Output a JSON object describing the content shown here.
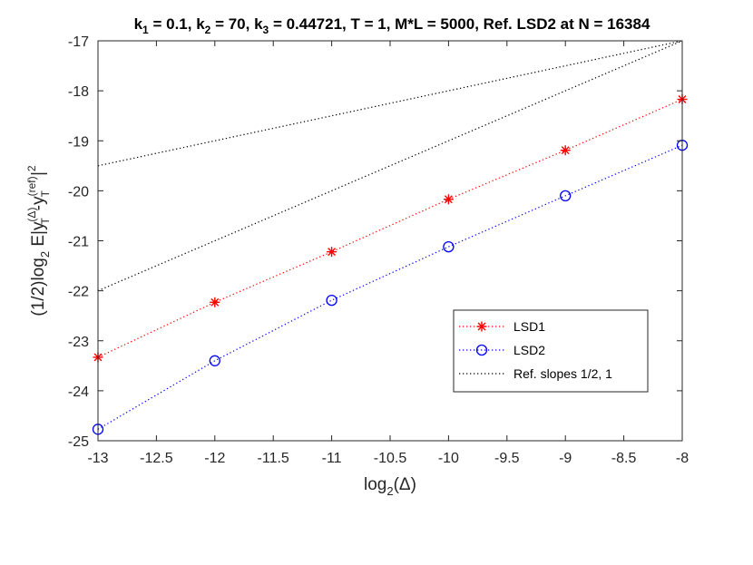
{
  "chart_data": {
    "type": "line",
    "title": {
      "parts": [
        {
          "t": "k"
        },
        {
          "t": "1",
          "sub": true
        },
        {
          "t": " = "
        },
        {
          "t": "0.1, k"
        },
        {
          "t": "2",
          "sub": true
        },
        {
          "t": " = "
        },
        {
          "t": "70, k"
        },
        {
          "t": "3",
          "sub": true
        },
        {
          "t": " = "
        },
        {
          "t": "0.44721, T = 1, M*L  = 5000, Ref. LSD2 at N = 16384"
        }
      ]
    },
    "xlabel": {
      "main": "log",
      "sub": "2",
      "rest": "(Δ)"
    },
    "ylabel": {
      "p1": "(1/2)log",
      "p1sub": "2",
      "p2": " E|y",
      "sup1": "(Δ)",
      "sub1": "T",
      "p3": "-y",
      "sup2": "(ref)",
      "sub2": "T",
      "p4": "|",
      "sup3": "2"
    },
    "xlim": [
      -13,
      -8
    ],
    "ylim": [
      -25,
      -17
    ],
    "xticks": [
      -13,
      -12.5,
      -12,
      -11.5,
      -11,
      -10.5,
      -10,
      -9.5,
      -9,
      -8.5,
      -8
    ],
    "yticks": [
      -25,
      -24,
      -23,
      -22,
      -21,
      -20,
      -19,
      -18,
      -17
    ],
    "grid": false,
    "legend_position": "center-right",
    "series": [
      {
        "name": "LSD1",
        "color": "#ff0000",
        "marker": "asterisk",
        "linestyle": "dotted",
        "x": [
          -13,
          -12,
          -11,
          -10,
          -9,
          -8
        ],
        "y": [
          -23.33,
          -22.23,
          -21.22,
          -20.17,
          -19.19,
          -18.17
        ]
      },
      {
        "name": "LSD2",
        "color": "#0000ff",
        "marker": "circle",
        "linestyle": "dotted",
        "x": [
          -13,
          -12,
          -11,
          -10,
          -9,
          -8
        ],
        "y": [
          -24.77,
          -23.4,
          -22.19,
          -21.12,
          -20.1,
          -19.09
        ]
      },
      {
        "name": "Ref. slopes 1/2, 1",
        "color": "#000000",
        "marker": "none",
        "linestyle": "dotted",
        "lines": [
          {
            "x": [
              -13,
              -8
            ],
            "y": [
              -19.5,
              -17
            ]
          },
          {
            "x": [
              -13,
              -8
            ],
            "y": [
              -22,
              -17
            ]
          }
        ]
      }
    ]
  }
}
